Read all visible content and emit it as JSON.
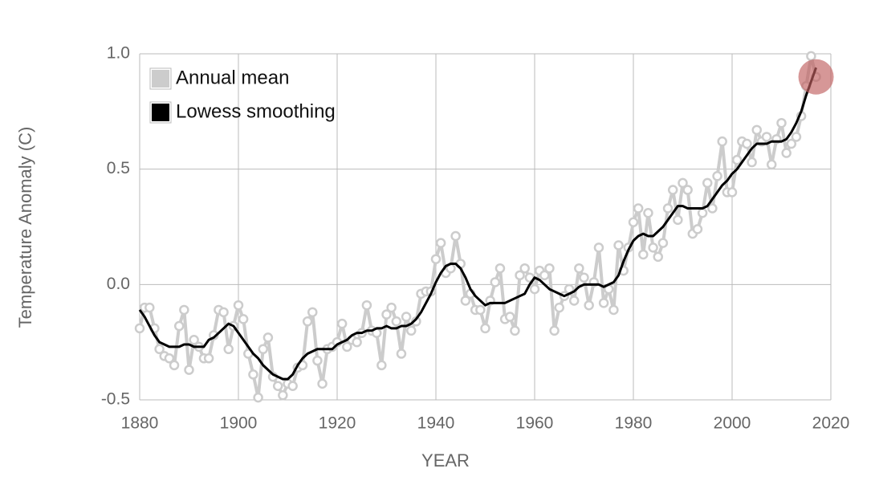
{
  "chart_data": {
    "type": "line",
    "x_label": "YEAR",
    "y_label": "Temperature Anomaly (C)",
    "x": [
      1880,
      1881,
      1882,
      1883,
      1884,
      1885,
      1886,
      1887,
      1888,
      1889,
      1890,
      1891,
      1892,
      1893,
      1894,
      1895,
      1896,
      1897,
      1898,
      1899,
      1900,
      1901,
      1902,
      1903,
      1904,
      1905,
      1906,
      1907,
      1908,
      1909,
      1910,
      1911,
      1912,
      1913,
      1914,
      1915,
      1916,
      1917,
      1918,
      1919,
      1920,
      1921,
      1922,
      1923,
      1924,
      1925,
      1926,
      1927,
      1928,
      1929,
      1930,
      1931,
      1932,
      1933,
      1934,
      1935,
      1936,
      1937,
      1938,
      1939,
      1940,
      1941,
      1942,
      1943,
      1944,
      1945,
      1946,
      1947,
      1948,
      1949,
      1950,
      1951,
      1952,
      1953,
      1954,
      1955,
      1956,
      1957,
      1958,
      1959,
      1960,
      1961,
      1962,
      1963,
      1964,
      1965,
      1966,
      1967,
      1968,
      1969,
      1970,
      1971,
      1972,
      1973,
      1974,
      1975,
      1976,
      1977,
      1978,
      1979,
      1980,
      1981,
      1982,
      1983,
      1984,
      1985,
      1986,
      1987,
      1988,
      1989,
      1990,
      1991,
      1992,
      1993,
      1994,
      1995,
      1996,
      1997,
      1998,
      1999,
      2000,
      2001,
      2002,
      2003,
      2004,
      2005,
      2006,
      2007,
      2008,
      2009,
      2010,
      2011,
      2012,
      2013,
      2014,
      2015,
      2016,
      2017
    ],
    "series": [
      {
        "name": "Annual mean",
        "color": "#cccccc",
        "markers": true,
        "values": [
          -0.19,
          -0.1,
          -0.1,
          -0.19,
          -0.28,
          -0.31,
          -0.32,
          -0.35,
          -0.18,
          -0.11,
          -0.37,
          -0.24,
          -0.27,
          -0.32,
          -0.32,
          -0.22,
          -0.11,
          -0.12,
          -0.28,
          -0.18,
          -0.09,
          -0.15,
          -0.3,
          -0.39,
          -0.49,
          -0.28,
          -0.23,
          -0.4,
          -0.44,
          -0.48,
          -0.43,
          -0.44,
          -0.36,
          -0.35,
          -0.16,
          -0.12,
          -0.33,
          -0.43,
          -0.28,
          -0.27,
          -0.25,
          -0.17,
          -0.27,
          -0.24,
          -0.25,
          -0.21,
          -0.09,
          -0.2,
          -0.21,
          -0.35,
          -0.13,
          -0.1,
          -0.16,
          -0.3,
          -0.14,
          -0.2,
          -0.16,
          -0.04,
          -0.03,
          -0.03,
          0.11,
          0.18,
          0.05,
          0.07,
          0.21,
          0.09,
          -0.07,
          -0.04,
          -0.11,
          -0.11,
          -0.19,
          -0.07,
          0.01,
          0.07,
          -0.15,
          -0.14,
          -0.2,
          0.04,
          0.07,
          0.03,
          -0.02,
          0.06,
          0.04,
          0.07,
          -0.2,
          -0.1,
          -0.05,
          -0.02,
          -0.07,
          0.07,
          0.03,
          -0.09,
          0.01,
          0.16,
          -0.08,
          -0.02,
          -0.11,
          0.17,
          0.06,
          0.16,
          0.27,
          0.33,
          0.13,
          0.31,
          0.16,
          0.12,
          0.18,
          0.33,
          0.41,
          0.28,
          0.44,
          0.41,
          0.22,
          0.24,
          0.31,
          0.44,
          0.33,
          0.47,
          0.62,
          0.4,
          0.4,
          0.54,
          0.62,
          0.61,
          0.53,
          0.67,
          0.62,
          0.64,
          0.52,
          0.63,
          0.7,
          0.57,
          0.61,
          0.64,
          0.73,
          0.86,
          0.99,
          0.9
        ]
      },
      {
        "name": "Lowess smoothing",
        "color": "#000000",
        "markers": false,
        "values": [
          -0.11,
          -0.14,
          -0.18,
          -0.22,
          -0.25,
          -0.26,
          -0.27,
          -0.27,
          -0.27,
          -0.26,
          -0.26,
          -0.27,
          -0.27,
          -0.27,
          -0.24,
          -0.23,
          -0.21,
          -0.19,
          -0.17,
          -0.18,
          -0.21,
          -0.24,
          -0.27,
          -0.3,
          -0.32,
          -0.35,
          -0.37,
          -0.39,
          -0.4,
          -0.41,
          -0.41,
          -0.39,
          -0.35,
          -0.32,
          -0.3,
          -0.29,
          -0.28,
          -0.28,
          -0.28,
          -0.28,
          -0.26,
          -0.25,
          -0.24,
          -0.22,
          -0.21,
          -0.21,
          -0.2,
          -0.2,
          -0.19,
          -0.19,
          -0.18,
          -0.19,
          -0.19,
          -0.18,
          -0.18,
          -0.17,
          -0.15,
          -0.12,
          -0.08,
          -0.04,
          0.01,
          0.05,
          0.08,
          0.09,
          0.09,
          0.07,
          0.03,
          -0.02,
          -0.05,
          -0.07,
          -0.09,
          -0.08,
          -0.08,
          -0.08,
          -0.08,
          -0.07,
          -0.06,
          -0.05,
          -0.04,
          0.0,
          0.03,
          0.02,
          0.0,
          -0.02,
          -0.03,
          -0.04,
          -0.05,
          -0.04,
          -0.03,
          -0.01,
          0.0,
          0.0,
          0.0,
          0.0,
          -0.01,
          0.0,
          0.01,
          0.04,
          0.1,
          0.15,
          0.19,
          0.21,
          0.22,
          0.21,
          0.21,
          0.23,
          0.25,
          0.28,
          0.31,
          0.34,
          0.34,
          0.33,
          0.33,
          0.33,
          0.33,
          0.34,
          0.37,
          0.4,
          0.43,
          0.45,
          0.48,
          0.5,
          0.53,
          0.56,
          0.59,
          0.61,
          0.61,
          0.61,
          0.62,
          0.62,
          0.62,
          0.63,
          0.66,
          0.7,
          0.75,
          0.82,
          0.88,
          0.94
        ]
      }
    ],
    "xlim": [
      1880,
      2020
    ],
    "xticks": [
      1880,
      1900,
      1920,
      1940,
      1960,
      1980,
      2000,
      2020
    ],
    "ylim": [
      -0.5,
      1.0
    ],
    "yticks": [
      -0.5,
      {
        "value": 0,
        "label": "0.0"
      },
      0.5,
      {
        "value": 1,
        "label": "1.0"
      }
    ],
    "grid": true,
    "legend": "top-left",
    "highlight_color": "#c0605f"
  }
}
